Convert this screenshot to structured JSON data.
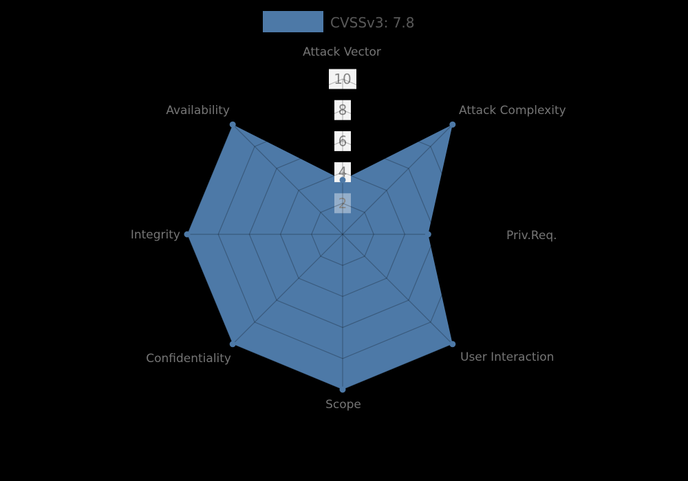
{
  "chart_data": {
    "type": "radar",
    "title": "",
    "legend": {
      "label": "CVSSv3: 7.8",
      "position": "top",
      "swatch_color": "#4d79a7",
      "text_color": "#595959"
    },
    "axes": [
      "Attack Vector",
      "Attack Complexity",
      "Priv.Req.",
      "User Interaction",
      "Scope",
      "Confidentiality",
      "Integrity",
      "Availability"
    ],
    "axes_order": "clockwise-from-top",
    "series": [
      {
        "name": "CVSSv3: 7.8",
        "color": "#4d79a7",
        "values": [
          3.5,
          10,
          5.5,
          10,
          10,
          10,
          10,
          10
        ]
      }
    ],
    "radial_axis": {
      "min": 0,
      "max": 10,
      "ticks": [
        2,
        4,
        6,
        8,
        10
      ],
      "tick_label_color": "#878787",
      "tick_backdrop_color": "#f4f4f4"
    },
    "grid": {
      "shape": "polygon",
      "line_color": "rgba(0,0,0,0.25)"
    },
    "background_color": "#000000",
    "axis_label_color": "#757575"
  }
}
